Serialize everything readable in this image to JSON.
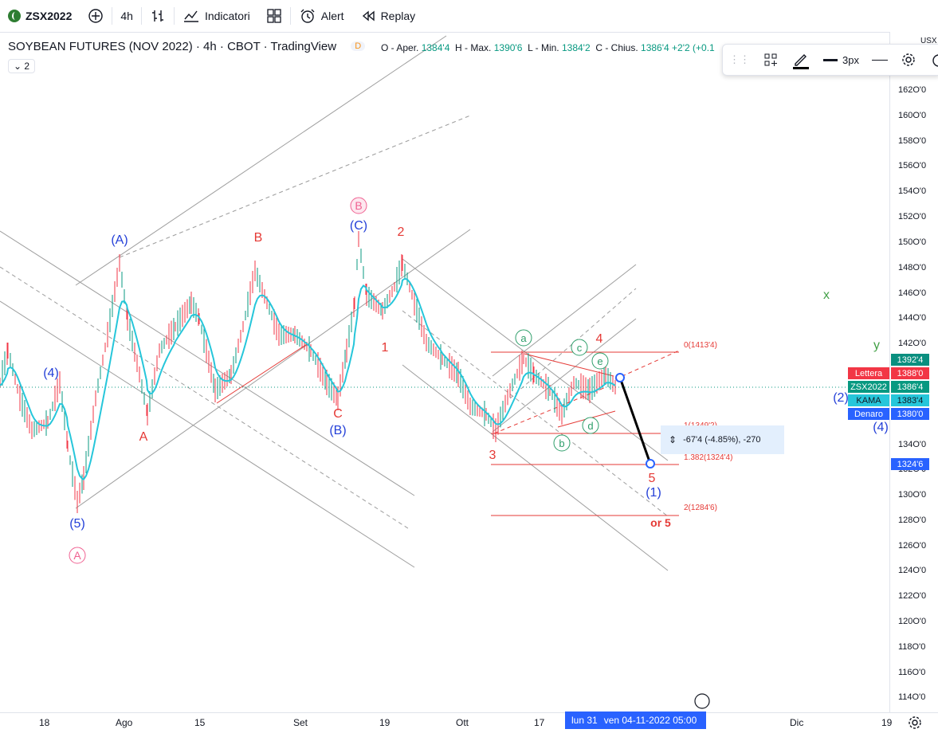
{
  "toolbar": {
    "symbol": "ZSX2022",
    "interval": "4h",
    "indicators": "Indicatori",
    "alert": "Alert",
    "replay": "Replay"
  },
  "legend": {
    "title": "SOYBEAN FUTURES (NOV 2022) · 4h · CBOT · TradingView",
    "badge": "D",
    "ohlc_o_label": "O - Aper.",
    "ohlc_o": "1384'4",
    "ohlc_h_label": "H - Max.",
    "ohlc_h": "1390'6",
    "ohlc_l_label": "L - Min.",
    "ohlc_l": "1384'2",
    "ohlc_c_label": "C - Chius.",
    "ohlc_c": "1386'4",
    "ohlc_change": "+2'2 (+0.1",
    "collapse_count": "2"
  },
  "drawing_toolbar": {
    "width_label": "3px"
  },
  "price_axis": [
    "162O'0",
    "160O'0",
    "158O'0",
    "156O'0",
    "154O'0",
    "152O'0",
    "150O'0",
    "148O'0",
    "146O'0",
    "144O'0",
    "142O'0",
    "134O'0",
    "132O'0",
    "130O'0",
    "128O'0",
    "126O'0",
    "124O'0",
    "122O'0",
    "120O'0",
    "118O'0",
    "116O'0",
    "114O'0"
  ],
  "price_tags": {
    "high": "1392'4",
    "lettera_label": "Lettera",
    "lettera": "1388'0",
    "symbol": "ZSX2022",
    "last": "1386'4",
    "kama_label": "KAMA",
    "kama": "1383'4",
    "denaro_label": "Denaro",
    "denaro": "1380'0",
    "target": "1324'6"
  },
  "time_axis": [
    "18",
    "Ago",
    "15",
    "Set",
    "19",
    "Ott",
    "17",
    "Dic",
    "19"
  ],
  "time_tag": {
    "left": "lun 31",
    "right": "ven 04-11-2022   05:00"
  },
  "measure": {
    "text": "-67'4 (-4.85%), -270"
  },
  "fib_levels": {
    "f0": "0(1413'4)",
    "f1": "1(1349'2)",
    "f1382": "1.382(1324'4)",
    "f2": "2(1284'6)"
  },
  "wave_labels": {
    "A_circle": "A",
    "B_circle": "B",
    "C_paren": "(C)",
    "A_paren": "(A)",
    "B_paren": "(B)",
    "four_paren": "(4)",
    "five_paren": "(5)",
    "A_red": "A",
    "B_red": "B",
    "C_red": "C",
    "one_red": "1",
    "two_red": "2",
    "three_red": "3",
    "four_red": "4",
    "five_red": "5",
    "or5": "or 5",
    "a": "a",
    "b": "b",
    "c": "c",
    "d": "d",
    "e": "e",
    "one_paren_blue": "(1)",
    "two_paren_blue": "(2)",
    "four_paren_blue2": "(4)",
    "x": "x",
    "y": "y"
  },
  "colors": {
    "accent": "#2962ff",
    "up": "#089981",
    "down": "#f23645",
    "wave_blue": "#2440d8",
    "wave_red": "#e53935",
    "wave_green": "#2e9e6a",
    "kama_teal": "#26c6da",
    "kama_purple": "#9c27b0"
  }
}
